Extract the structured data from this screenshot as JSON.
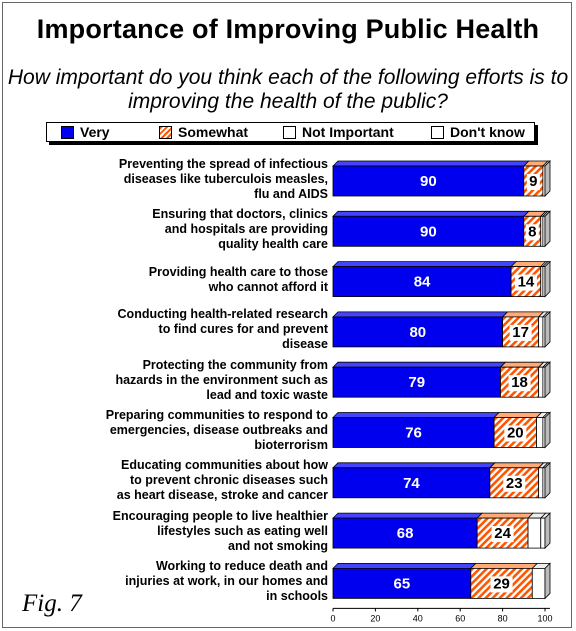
{
  "chart_data": {
    "type": "bar",
    "orientation": "horizontal",
    "stacked": true,
    "title": "Importance of Improving Public Health",
    "subtitle": "How important do you think each of the following efforts is to improving the health of the public?",
    "legend_position": "top",
    "categories": [
      "Preventing the spread of infectious diseases like tuberculois measles, flu and AIDS",
      "Ensuring that doctors, clinics and hospitals are providing quality health care",
      "Providing health care to those who cannot afford it",
      "Conducting health-related research to find cures for and prevent disease",
      "Protecting the community from hazards in the environment such as lead and toxic waste",
      "Preparing communities to respond to emergencies, disease outbreaks and bioterrorism",
      "Educating communities about how to prevent chronic diseases such as heart disease, stroke and cancer",
      "Encouraging people to live healthier lifestyles such as eating well and not smoking",
      "Working to reduce death and injuries at work, in our homes and in schools"
    ],
    "label_lines": [
      [
        "Preventing the spread of infectious",
        "diseases like tuberculois measles,",
        "flu and AIDS"
      ],
      [
        "Ensuring that doctors, clinics",
        "and hospitals are providing",
        "quality health care"
      ],
      [
        "Providing health care to those",
        "who cannot afford it"
      ],
      [
        "Conducting health-related research",
        "to find cures for and prevent",
        "disease"
      ],
      [
        "Protecting the community from",
        "hazards in the environment such as",
        "lead and toxic waste"
      ],
      [
        "Preparing communities to respond to",
        "emergencies, disease outbreaks and",
        "bioterrorism"
      ],
      [
        "Educating communities about how",
        "to prevent chronic diseases such",
        "as heart disease, stroke and cancer"
      ],
      [
        "Encouraging people to live healthier",
        "lifestyles such as eating well",
        "and not smoking"
      ],
      [
        "Working to reduce death and",
        "injuries at work, in our homes and",
        "in schools"
      ]
    ],
    "series": [
      {
        "name": "Very",
        "color": "#0000ee",
        "values": [
          90,
          90,
          84,
          80,
          79,
          76,
          74,
          68,
          65
        ],
        "labeled": true
      },
      {
        "name": "Somewhat",
        "color": "#ff5500",
        "pattern": "hatched",
        "values": [
          9,
          8,
          14,
          17,
          18,
          20,
          23,
          24,
          29
        ],
        "labeled": true
      },
      {
        "name": "Not Important",
        "color": "#ffffff",
        "values": [
          1,
          1,
          1,
          2,
          2,
          3,
          2,
          6,
          6
        ],
        "labeled": false
      },
      {
        "name": "Don't know",
        "color": "#ffffff",
        "values": [
          0,
          1,
          1,
          1,
          1,
          1,
          1,
          2,
          0
        ],
        "labeled": false
      }
    ],
    "xlim": [
      0,
      100
    ],
    "xticks": [
      "0",
      "20",
      "40",
      "60",
      "80",
      "100"
    ],
    "grid": false
  },
  "figure_label": "Fig. 7"
}
